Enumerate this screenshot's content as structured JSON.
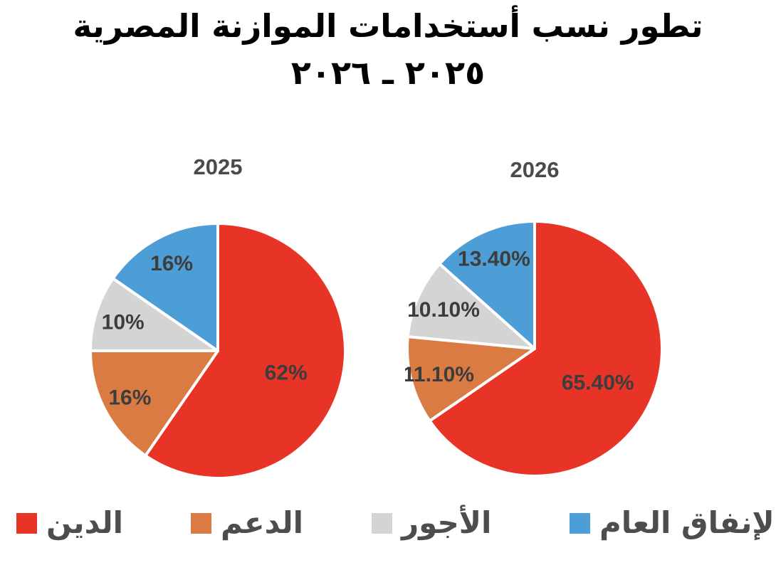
{
  "title": {
    "line1": "تطور نسب أستخدامات الموازنة المصرية",
    "line2": "٢٠٢٥ ـ ٢٠٢٦"
  },
  "legend": {
    "items": [
      {
        "label": "الدين",
        "color": "#e83426"
      },
      {
        "label": "الدعم",
        "color": "#d97b42"
      },
      {
        "label": "الأجور",
        "color": "#d4d4d4"
      },
      {
        "label": "الإنفاق العام",
        "color": "#4d9dd6"
      }
    ]
  },
  "chart_data": [
    {
      "type": "pie",
      "title": "2025",
      "categories": [
        "الدين",
        "الدعم",
        "الأجور",
        "الإنفاق العام"
      ],
      "values": [
        62,
        16,
        10,
        16
      ],
      "labels": [
        "62%",
        "16%",
        "10%",
        "16%"
      ],
      "colors": [
        "#e83426",
        "#d97b42",
        "#d4d4d4",
        "#4d9dd6"
      ],
      "start_angle": "top",
      "direction": "clockwise",
      "label_position": "inside"
    },
    {
      "type": "pie",
      "title": "2026",
      "categories": [
        "الدين",
        "الدعم",
        "الأجور",
        "الإنفاق العام"
      ],
      "values": [
        65.4,
        11.1,
        10.1,
        13.4
      ],
      "labels": [
        "65.40%",
        "11.10%",
        "10.10%",
        "13.40%"
      ],
      "colors": [
        "#e83426",
        "#d97b42",
        "#d4d4d4",
        "#4d9dd6"
      ],
      "start_angle": "top",
      "direction": "clockwise",
      "label_position": "inside"
    }
  ],
  "colors": {
    "background": "#ffffff",
    "title_text": "#000000",
    "year_text": "#4a4a4a",
    "slice_label_text": "#3d3d3d",
    "legend_text": "#4d4d4d",
    "slice_border": "#ffffff"
  }
}
